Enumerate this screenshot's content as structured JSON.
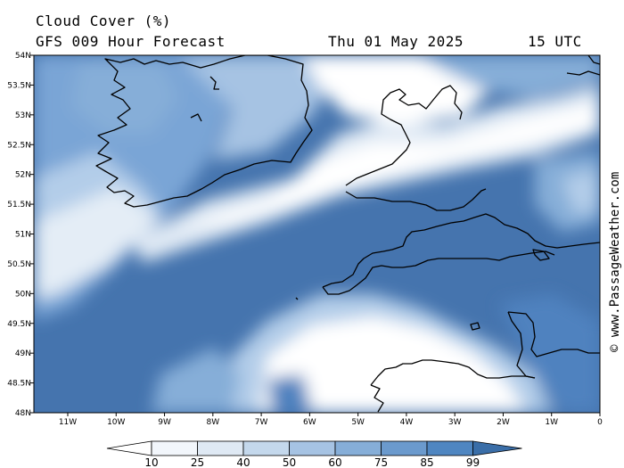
{
  "header": {
    "title": "Cloud Cover (%)",
    "model": "GFS 009 Hour Forecast",
    "date": "Thu 01 May 2025",
    "time": "15 UTC"
  },
  "credit": "© www.PassageWeather.com",
  "axes": {
    "lat_labels": [
      "54N",
      "53.5N",
      "53N",
      "52.5N",
      "52N",
      "51.5N",
      "51N",
      "50.5N",
      "50N",
      "49.5N",
      "49N",
      "48.5N",
      "48N"
    ],
    "lon_labels": [
      "11W",
      "10W",
      "9W",
      "8W",
      "7W",
      "6W",
      "5W",
      "4W",
      "3W",
      "2W",
      "1W",
      "0"
    ]
  },
  "colorbar": {
    "ticks": [
      "10",
      "25",
      "40",
      "50",
      "60",
      "75",
      "85",
      "99"
    ],
    "colors": [
      "#ffffff",
      "#f2f6fb",
      "#dfe9f4",
      "#c4d8ec",
      "#a6c3e3",
      "#86aed8",
      "#6b9acd",
      "#4f86c1",
      "#3a6ea8"
    ]
  },
  "map_colors": {
    "deep": "#3f6ea8",
    "dark": "#4f82bf",
    "mid": "#7aa5d6",
    "light": "#b3cde9",
    "pale": "#dfe9f4",
    "white": "#ffffff"
  }
}
